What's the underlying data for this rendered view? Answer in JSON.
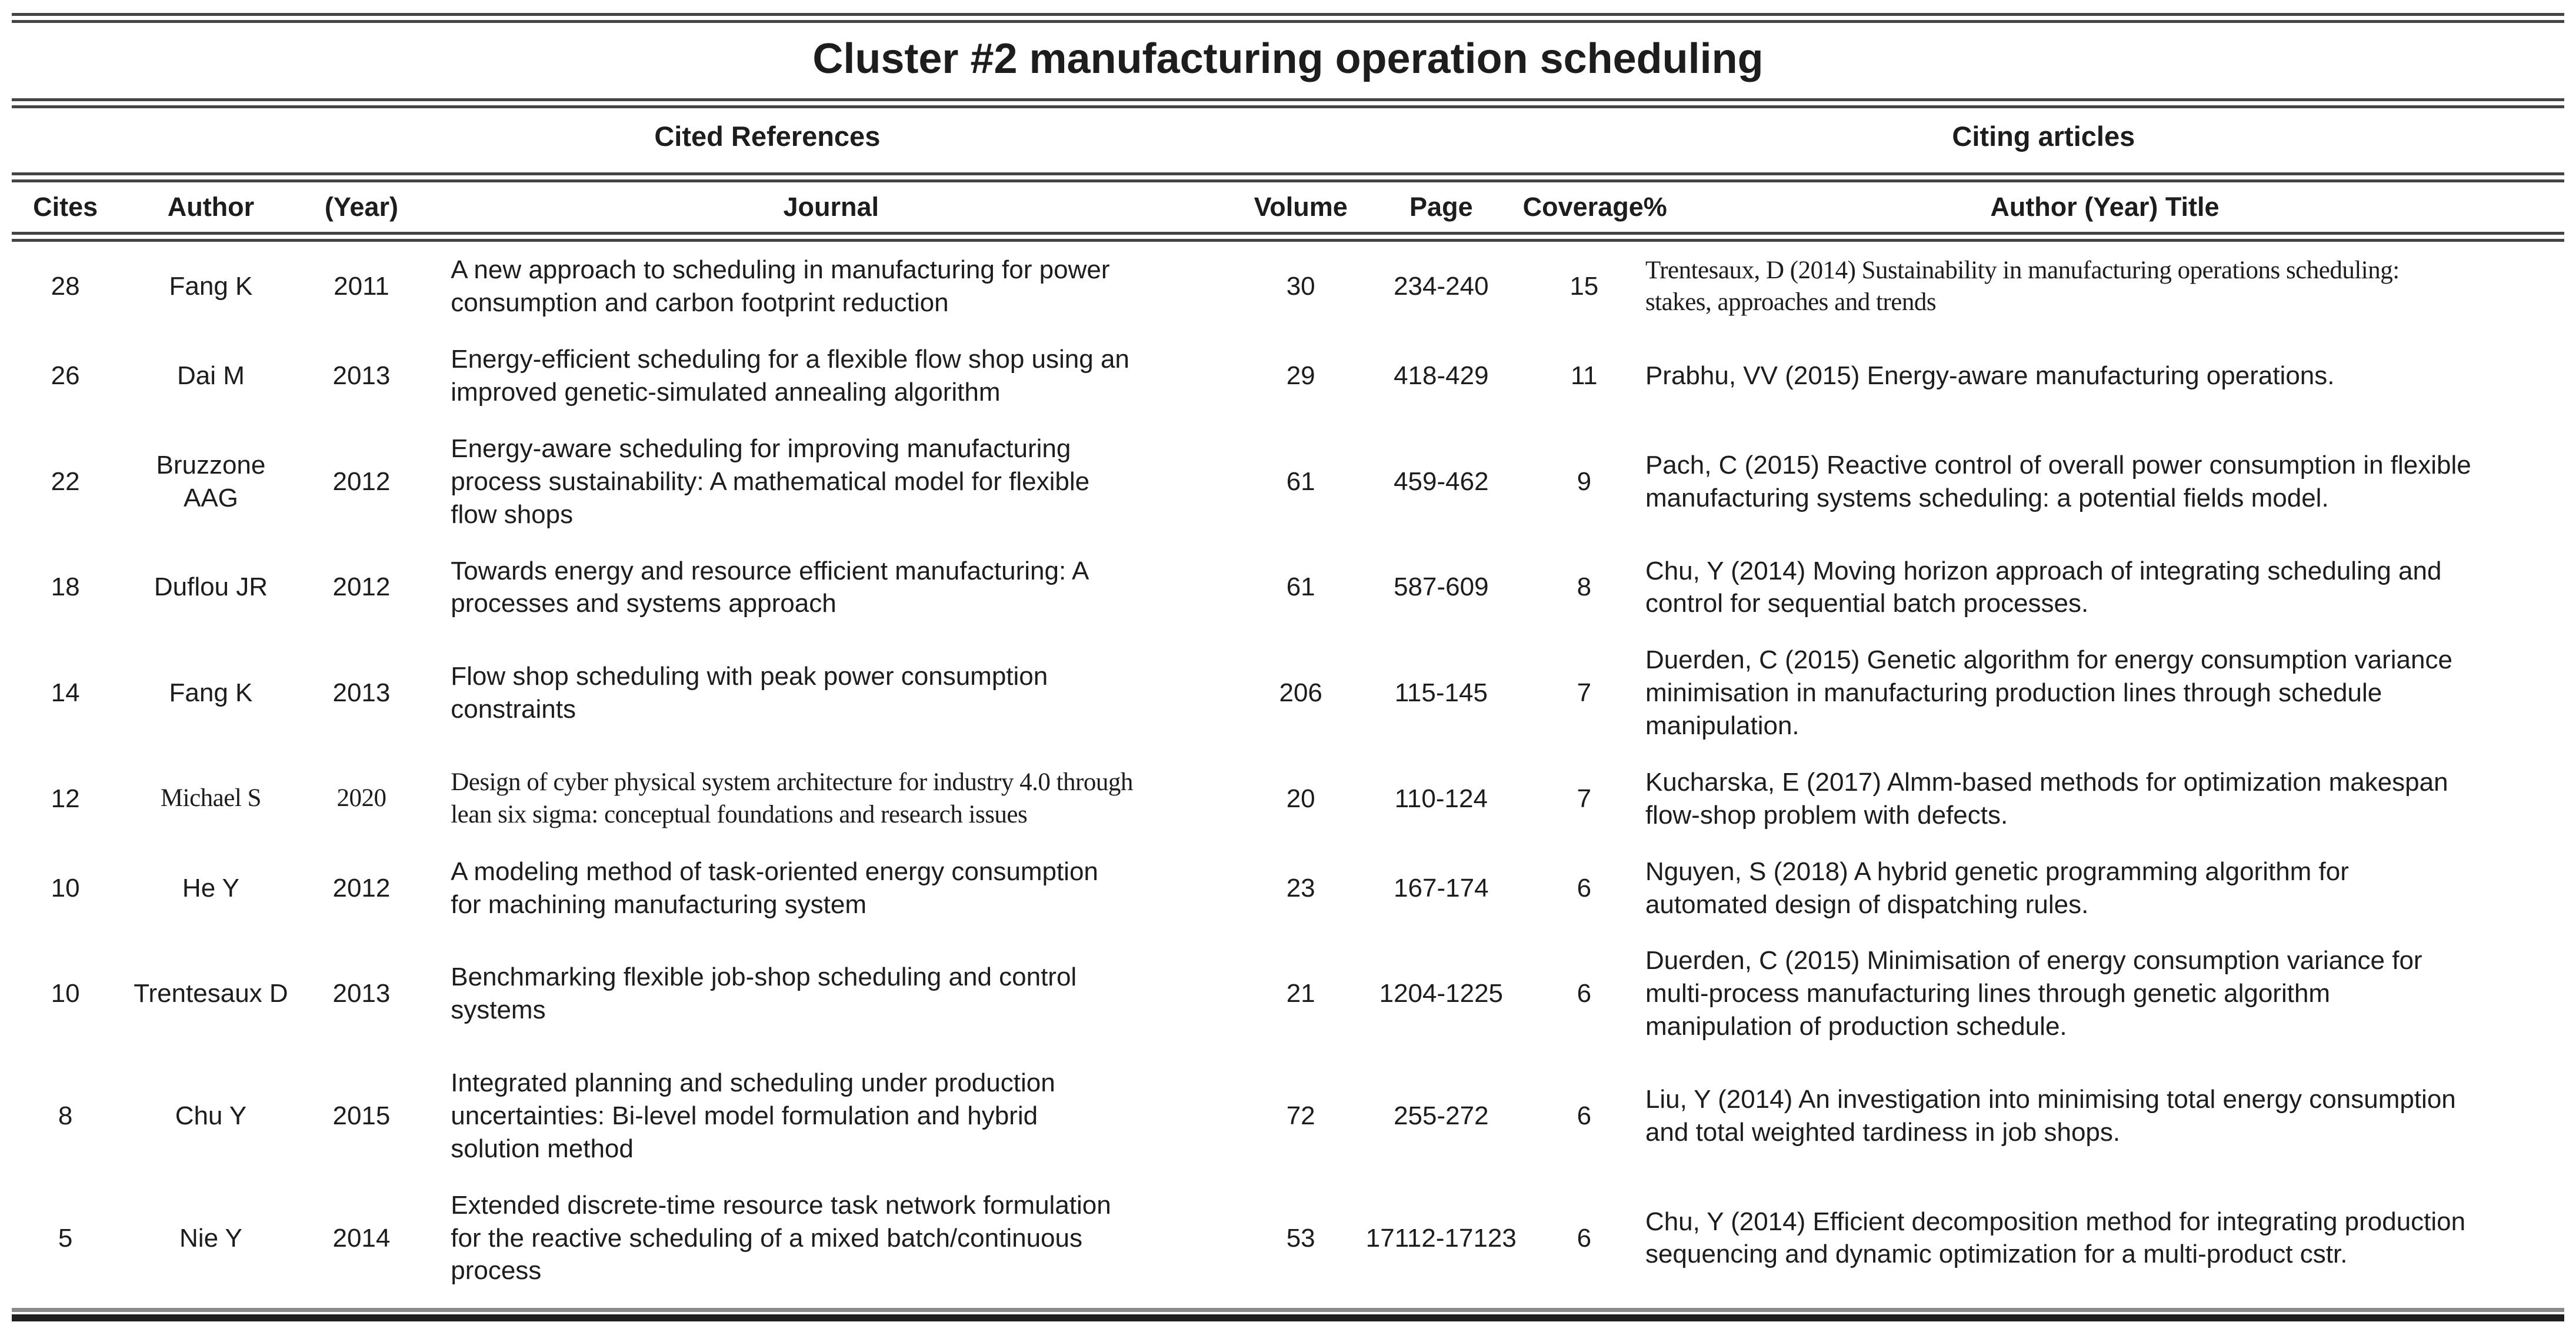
{
  "title": "Cluster #2 manufacturing operation scheduling",
  "section_headers": {
    "cited": "Cited References",
    "citing": "Citing articles"
  },
  "columns": {
    "cites": "Cites",
    "author": "Author",
    "year": "(Year)",
    "journal": "Journal",
    "volume": "Volume",
    "page": "Page",
    "coverage": "Coverage%",
    "citing_article": "Author (Year) Title"
  },
  "rows": [
    {
      "cites": "28",
      "author": "Fang K",
      "year": "2011",
      "journal": "A new approach to scheduling in manufacturing for power\nconsumption and carbon footprint reduction",
      "volume": "30",
      "page": "234-240",
      "coverage": "15",
      "citing": "Trentesaux, D (2014) Sustainability in manufacturing operations scheduling:\nstakes, approaches and trends"
    },
    {
      "cites": "26",
      "author": "Dai M",
      "year": "2013",
      "journal": "Energy-efficient scheduling for a flexible flow shop using an\nimproved genetic-simulated annealing algorithm",
      "volume": "29",
      "page": "418-429",
      "coverage": "11",
      "citing": "Prabhu, VV (2015) Energy-aware manufacturing operations."
    },
    {
      "cites": "22",
      "author": "Bruzzone\nAAG",
      "year": "2012",
      "journal": "Energy-aware scheduling for improving manufacturing\nprocess sustainability: A mathematical model for flexible\nflow shops",
      "volume": "61",
      "page": "459-462",
      "coverage": "9",
      "citing": "Pach, C (2015) Reactive control of overall power consumption in flexible\nmanufacturing systems scheduling: a potential fields model."
    },
    {
      "cites": "18",
      "author": "Duflou JR",
      "year": "2012",
      "journal": "Towards energy and resource efficient manufacturing: A\nprocesses and systems approach",
      "volume": "61",
      "page": "587-609",
      "coverage": "8",
      "citing": "Chu, Y (2014) Moving horizon approach of integrating scheduling and\ncontrol for sequential batch processes."
    },
    {
      "cites": "14",
      "author": "Fang K",
      "year": "2013",
      "journal": "Flow shop scheduling with peak power consumption\nconstraints",
      "volume": "206",
      "page": "115-145",
      "coverage": "7",
      "citing": "Duerden, C (2015) Genetic algorithm for energy consumption variance\nminimisation in manufacturing production lines through schedule\nmanipulation."
    },
    {
      "cites": "12",
      "author": "Michael S",
      "year": "2020",
      "journal": "Design of cyber physical system architecture for industry 4.0 through\nlean six sigma: conceptual foundations and research issues",
      "volume": "20",
      "page": "110-124",
      "coverage": "7",
      "citing": "Kucharska, E (2017) Almm-based methods for optimization makespan\nflow-shop problem with defects."
    },
    {
      "cites": "10",
      "author": "He Y",
      "year": "2012",
      "journal": "A modeling method of task-oriented energy consumption\nfor machining manufacturing system",
      "volume": "23",
      "page": "167-174",
      "coverage": "6",
      "citing": "Nguyen, S (2018) A hybrid genetic programming algorithm for\nautomated design of dispatching rules."
    },
    {
      "cites": "10",
      "author": "Trentesaux D",
      "year": "2013",
      "journal": "Benchmarking flexible job-shop scheduling and control\nsystems",
      "volume": "21",
      "page": "1204-1225",
      "coverage": "6",
      "citing": "Duerden, C (2015) Minimisation of energy consumption variance for\nmulti-process manufacturing lines through genetic algorithm\nmanipulation of production schedule."
    },
    {
      "cites": "8",
      "author": "Chu Y",
      "year": "2015",
      "journal": "Integrated planning and scheduling under production\nuncertainties: Bi-level model formulation and hybrid\nsolution method",
      "volume": "72",
      "page": "255-272",
      "coverage": "6",
      "citing": "Liu, Y (2014) An investigation into minimising total energy consumption\nand total weighted tardiness in job shops."
    },
    {
      "cites": "5",
      "author": "Nie Y",
      "year": "2014",
      "journal": "Extended discrete-time resource task network formulation\nfor the reactive scheduling of a mixed batch/continuous\nprocess",
      "volume": "53",
      "page": "17112-17123",
      "coverage": "6",
      "citing": "Chu, Y (2014) Efficient decomposition method for integrating production\nsequencing and dynamic optimization for a multi-product cstr."
    }
  ]
}
